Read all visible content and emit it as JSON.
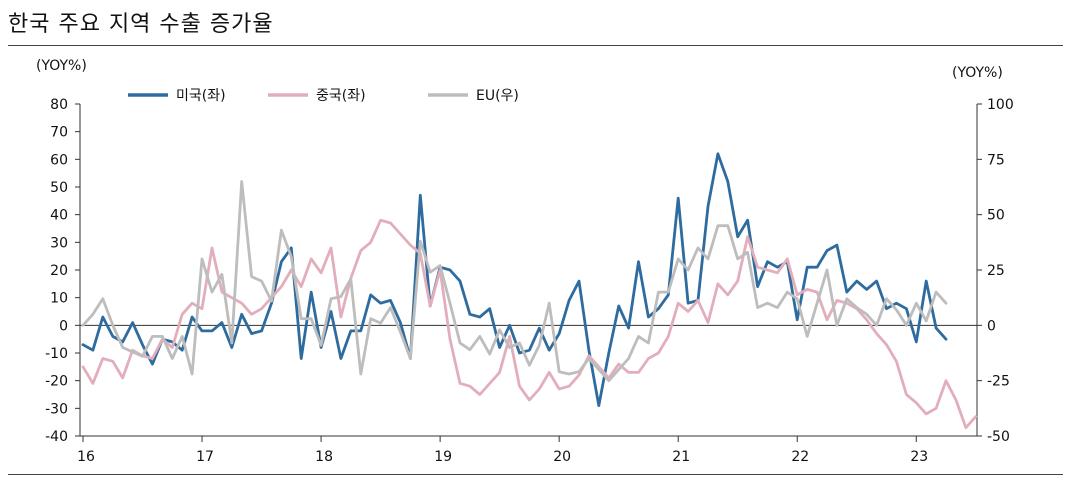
{
  "title": "한국 주요 지역 수출 증가율",
  "chart_data": {
    "type": "line",
    "title": "한국 주요 지역 수출 증가율",
    "y_left": {
      "label": "(YOY%)",
      "lim": [
        -40,
        80
      ],
      "ticks": [
        -40,
        -30,
        -20,
        -10,
        0,
        10,
        20,
        30,
        40,
        50,
        60,
        70,
        80
      ]
    },
    "y_right": {
      "label": "(YOY%)",
      "lim": [
        -50,
        100
      ],
      "ticks": [
        -50,
        -25,
        0,
        25,
        50,
        75,
        100
      ]
    },
    "x_ticks": [
      "16",
      "17",
      "18",
      "19",
      "20",
      "21",
      "22",
      "23"
    ],
    "x_start": "2016-01",
    "legend": "top",
    "grid": false,
    "series": [
      {
        "name": "미국(좌)",
        "axis": "left",
        "color": "#2e6b9e",
        "values": [
          -7,
          -9,
          3,
          -4,
          -6,
          1,
          -7,
          -14,
          -5,
          -6,
          -9,
          3,
          -2,
          -2,
          1,
          -8,
          4,
          -3,
          -2,
          8,
          23,
          28,
          -12,
          12,
          -8,
          5,
          -12,
          -2,
          -2,
          11,
          8,
          9,
          1,
          -12,
          47,
          7,
          21,
          20,
          16,
          4,
          3,
          6,
          -8,
          0,
          -10,
          -9,
          -1,
          -9,
          -3,
          9,
          16,
          -9,
          -29,
          -10,
          7,
          -1,
          23,
          3,
          6,
          11,
          46,
          8,
          9,
          43,
          62,
          52,
          32,
          38,
          14,
          23,
          21,
          23,
          2,
          21,
          21,
          27,
          29,
          12,
          16,
          13,
          16,
          6,
          8,
          6,
          -6,
          16,
          -1,
          -5
        ]
      },
      {
        "name": "중국(좌)",
        "axis": "left",
        "color": "#e3aebb",
        "values": [
          -15,
          -21,
          -12,
          -13,
          -19,
          -9,
          -11,
          -12,
          -5,
          -8,
          4,
          8,
          6,
          28,
          12,
          10,
          8,
          4,
          6,
          10,
          14,
          20,
          14,
          24,
          19,
          28,
          3,
          17,
          27,
          30,
          38,
          37,
          33,
          29,
          26,
          7,
          20,
          -5,
          -21,
          -22,
          -25,
          -21,
          -17,
          -4,
          -22,
          -27,
          -23,
          -17,
          -23,
          -22,
          -18,
          -11,
          -15,
          -19,
          -14,
          -17,
          -17,
          -12,
          -10,
          -4,
          8,
          5,
          9,
          1,
          15,
          11,
          16,
          32,
          21,
          20,
          19,
          24,
          11,
          13,
          12,
          2,
          9,
          8,
          6,
          2,
          -3,
          -7,
          -13,
          -25,
          -28,
          -32,
          -30,
          -20,
          -27,
          -37,
          -33
        ]
      },
      {
        "name": "EU(우)",
        "axis": "right",
        "color": "#bdbdbd",
        "values": [
          0,
          5,
          12,
          0,
          -10,
          -12,
          -14,
          -5,
          -5,
          -15,
          -5,
          -22,
          30,
          15,
          23,
          -8,
          65,
          22,
          20,
          11,
          43,
          31,
          3,
          3,
          -9,
          12,
          13,
          21,
          -22,
          3,
          1,
          8,
          -3,
          -15,
          38,
          24,
          27,
          10,
          -8,
          -11,
          -5,
          -13,
          -2,
          -10,
          -8,
          -18,
          -9,
          10,
          -21,
          -22,
          -21,
          -15,
          -20,
          -25,
          -20,
          -15,
          -5,
          -8,
          15,
          15,
          30,
          25,
          35,
          30,
          45,
          45,
          30,
          33,
          8,
          10,
          8,
          15,
          12,
          -5,
          10,
          25,
          0,
          12,
          8,
          5,
          0,
          12,
          7,
          0,
          10,
          2,
          15,
          10
        ]
      }
    ]
  }
}
